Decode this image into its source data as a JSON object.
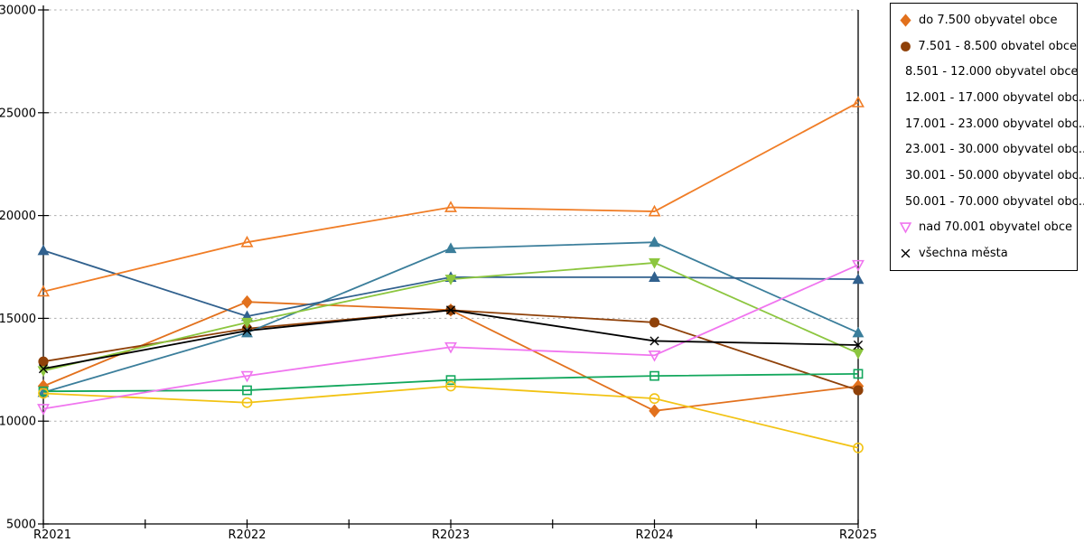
{
  "chart_data": {
    "type": "line",
    "title": "",
    "xlabel": "",
    "ylabel": "",
    "categories": [
      "R2021",
      "R2022",
      "R2023",
      "R2024",
      "R2025"
    ],
    "ylim": [
      5000,
      30000
    ],
    "yticks": [
      5000,
      10000,
      15000,
      20000,
      25000,
      30000
    ],
    "ytick_labels": [
      "5000",
      "10000",
      "15000",
      "20000",
      "25000",
      "30000"
    ],
    "grid": "horizontal-dashed",
    "legend_position": "outside-top-right",
    "series": [
      {
        "label": "do 7.500 obyvatel obce",
        "color": "#E2711D",
        "marker": "diamond",
        "filled": true,
        "values": [
          11700,
          15800,
          15400,
          10500,
          11700
        ]
      },
      {
        "label": "7.501 - 8.500 obvatel obce",
        "color": "#8F4109",
        "marker": "circle",
        "filled": true,
        "values": [
          12900,
          14500,
          15400,
          14800,
          11500
        ]
      },
      {
        "label": "8.501 - 12.000 obyvatel obce",
        "color": "#3B7E9B",
        "marker": "triangle-up",
        "filled": true,
        "values": [
          11400,
          14300,
          18400,
          18700,
          14300
        ]
      },
      {
        "label": "12.001 - 17.000 obyvatel obc...",
        "color": "#31618E",
        "marker": "triangle-up",
        "filled": true,
        "values": [
          18300,
          15100,
          17000,
          17000,
          16900
        ]
      },
      {
        "label": "17.001 - 23.000 obyvatel obc...",
        "color": "#8CC63F",
        "marker": "triangle-down",
        "filled": true,
        "values": [
          12450,
          14800,
          16900,
          17700,
          13300
        ]
      },
      {
        "label": "23.001 - 30.000 obyvatel obc...",
        "color": "#13A75D",
        "marker": "square",
        "filled": false,
        "values": [
          11450,
          11500,
          12000,
          12200,
          12300
        ]
      },
      {
        "label": "30.001 - 50.000 obyvatel obc...",
        "color": "#F2C314",
        "marker": "circle",
        "filled": false,
        "values": [
          11350,
          10900,
          11700,
          11100,
          8700
        ]
      },
      {
        "label": "50.001 - 70.000 obyvatel obc...",
        "color": "#F07D26",
        "marker": "triangle-up",
        "filled": false,
        "values": [
          16300,
          18700,
          20400,
          20200,
          25500
        ]
      },
      {
        "label": "nad 70.001 obyvatel obce",
        "color": "#F075EF",
        "marker": "triangle-down",
        "filled": false,
        "values": [
          10600,
          12200,
          13600,
          13200,
          17600
        ]
      },
      {
        "label": "všechna města",
        "color": "#000000",
        "marker": "x",
        "filled": false,
        "values": [
          12550,
          14400,
          15400,
          13900,
          13700
        ]
      }
    ],
    "axis_color": "#000000",
    "gridline_color": "#AFAFAF"
  }
}
